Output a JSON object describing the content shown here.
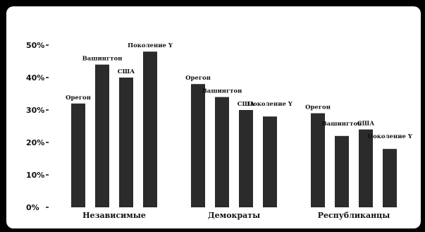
{
  "chart_data": {
    "type": "bar",
    "title": "",
    "xlabel": "",
    "ylabel": "",
    "ylim": [
      0,
      50
    ],
    "y_ticks": [
      "50%",
      "40%",
      "30%",
      "20%",
      "10%",
      "0%"
    ],
    "grid": false,
    "legend": "none",
    "bar_color": "#2b2b2b",
    "groups": [
      {
        "label": "Независимые",
        "bars": [
          {
            "label": "Орегон",
            "value": 32
          },
          {
            "label": "Вашингтон",
            "value": 44
          },
          {
            "label": "США",
            "value": 40
          },
          {
            "label": "Поколение Y",
            "value": 48
          }
        ]
      },
      {
        "label": "Демократы",
        "bars": [
          {
            "label": "Орегон",
            "value": 38
          },
          {
            "label": "Вашингтон",
            "value": 34
          },
          {
            "label": "США",
            "value": 30
          },
          {
            "label": "Поколение Y",
            "value": 28
          }
        ]
      },
      {
        "label": "Республиканцы",
        "bars": [
          {
            "label": "Орегон",
            "value": 29
          },
          {
            "label": "Вашингтон",
            "value": 22
          },
          {
            "label": "США",
            "value": 24
          },
          {
            "label": "Поколение Y",
            "value": 18
          }
        ]
      }
    ]
  }
}
